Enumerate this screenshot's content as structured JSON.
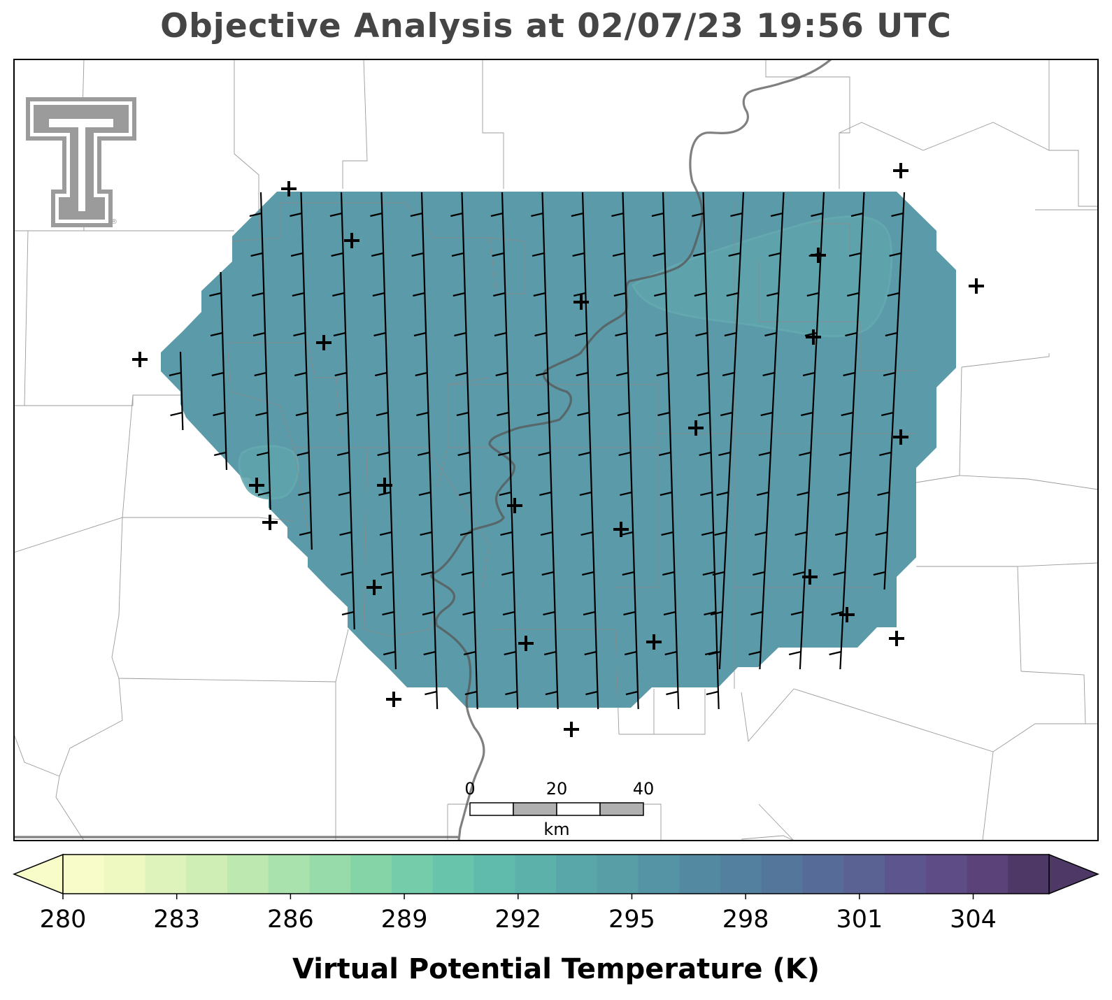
{
  "title": "Objective Analysis at 02/07/23 19:56 UTC",
  "logo": {
    "name": "texas-tech-double-t-logo",
    "mark": "®"
  },
  "map": {
    "field_fill_color": "#5b9aa9",
    "field_level_K": 294,
    "pocket_color": "#5fa4ad",
    "station_marker": "plus",
    "wind_barbs": "north wind, 5 kt barbs (half barb)"
  },
  "scale_bar": {
    "labels": [
      "0",
      "20",
      "40"
    ],
    "unit": "km"
  },
  "colorbar": {
    "label": "Virtual Potential Temperature (K)",
    "min": 280,
    "max": 306,
    "step": 1,
    "ticks": [
      280,
      283,
      286,
      289,
      292,
      295,
      298,
      301,
      304
    ],
    "extend": "both",
    "cmap_name": "crest_r",
    "colors": [
      "#f7fcc8",
      "#eef9c1",
      "#def3bb",
      "#cfeeb5",
      "#bde8b0",
      "#aae2ad",
      "#97dbaa",
      "#84d4a8",
      "#74ccaa",
      "#68c4ab",
      "#61bbac",
      "#5cb1ab",
      "#59a7a9",
      "#579ea7",
      "#5594a4",
      "#548aa1",
      "#53809e",
      "#54769b",
      "#566b97",
      "#5a6193",
      "#5d568e",
      "#5d4c86",
      "#5b4279",
      "#4e3866"
    ]
  }
}
